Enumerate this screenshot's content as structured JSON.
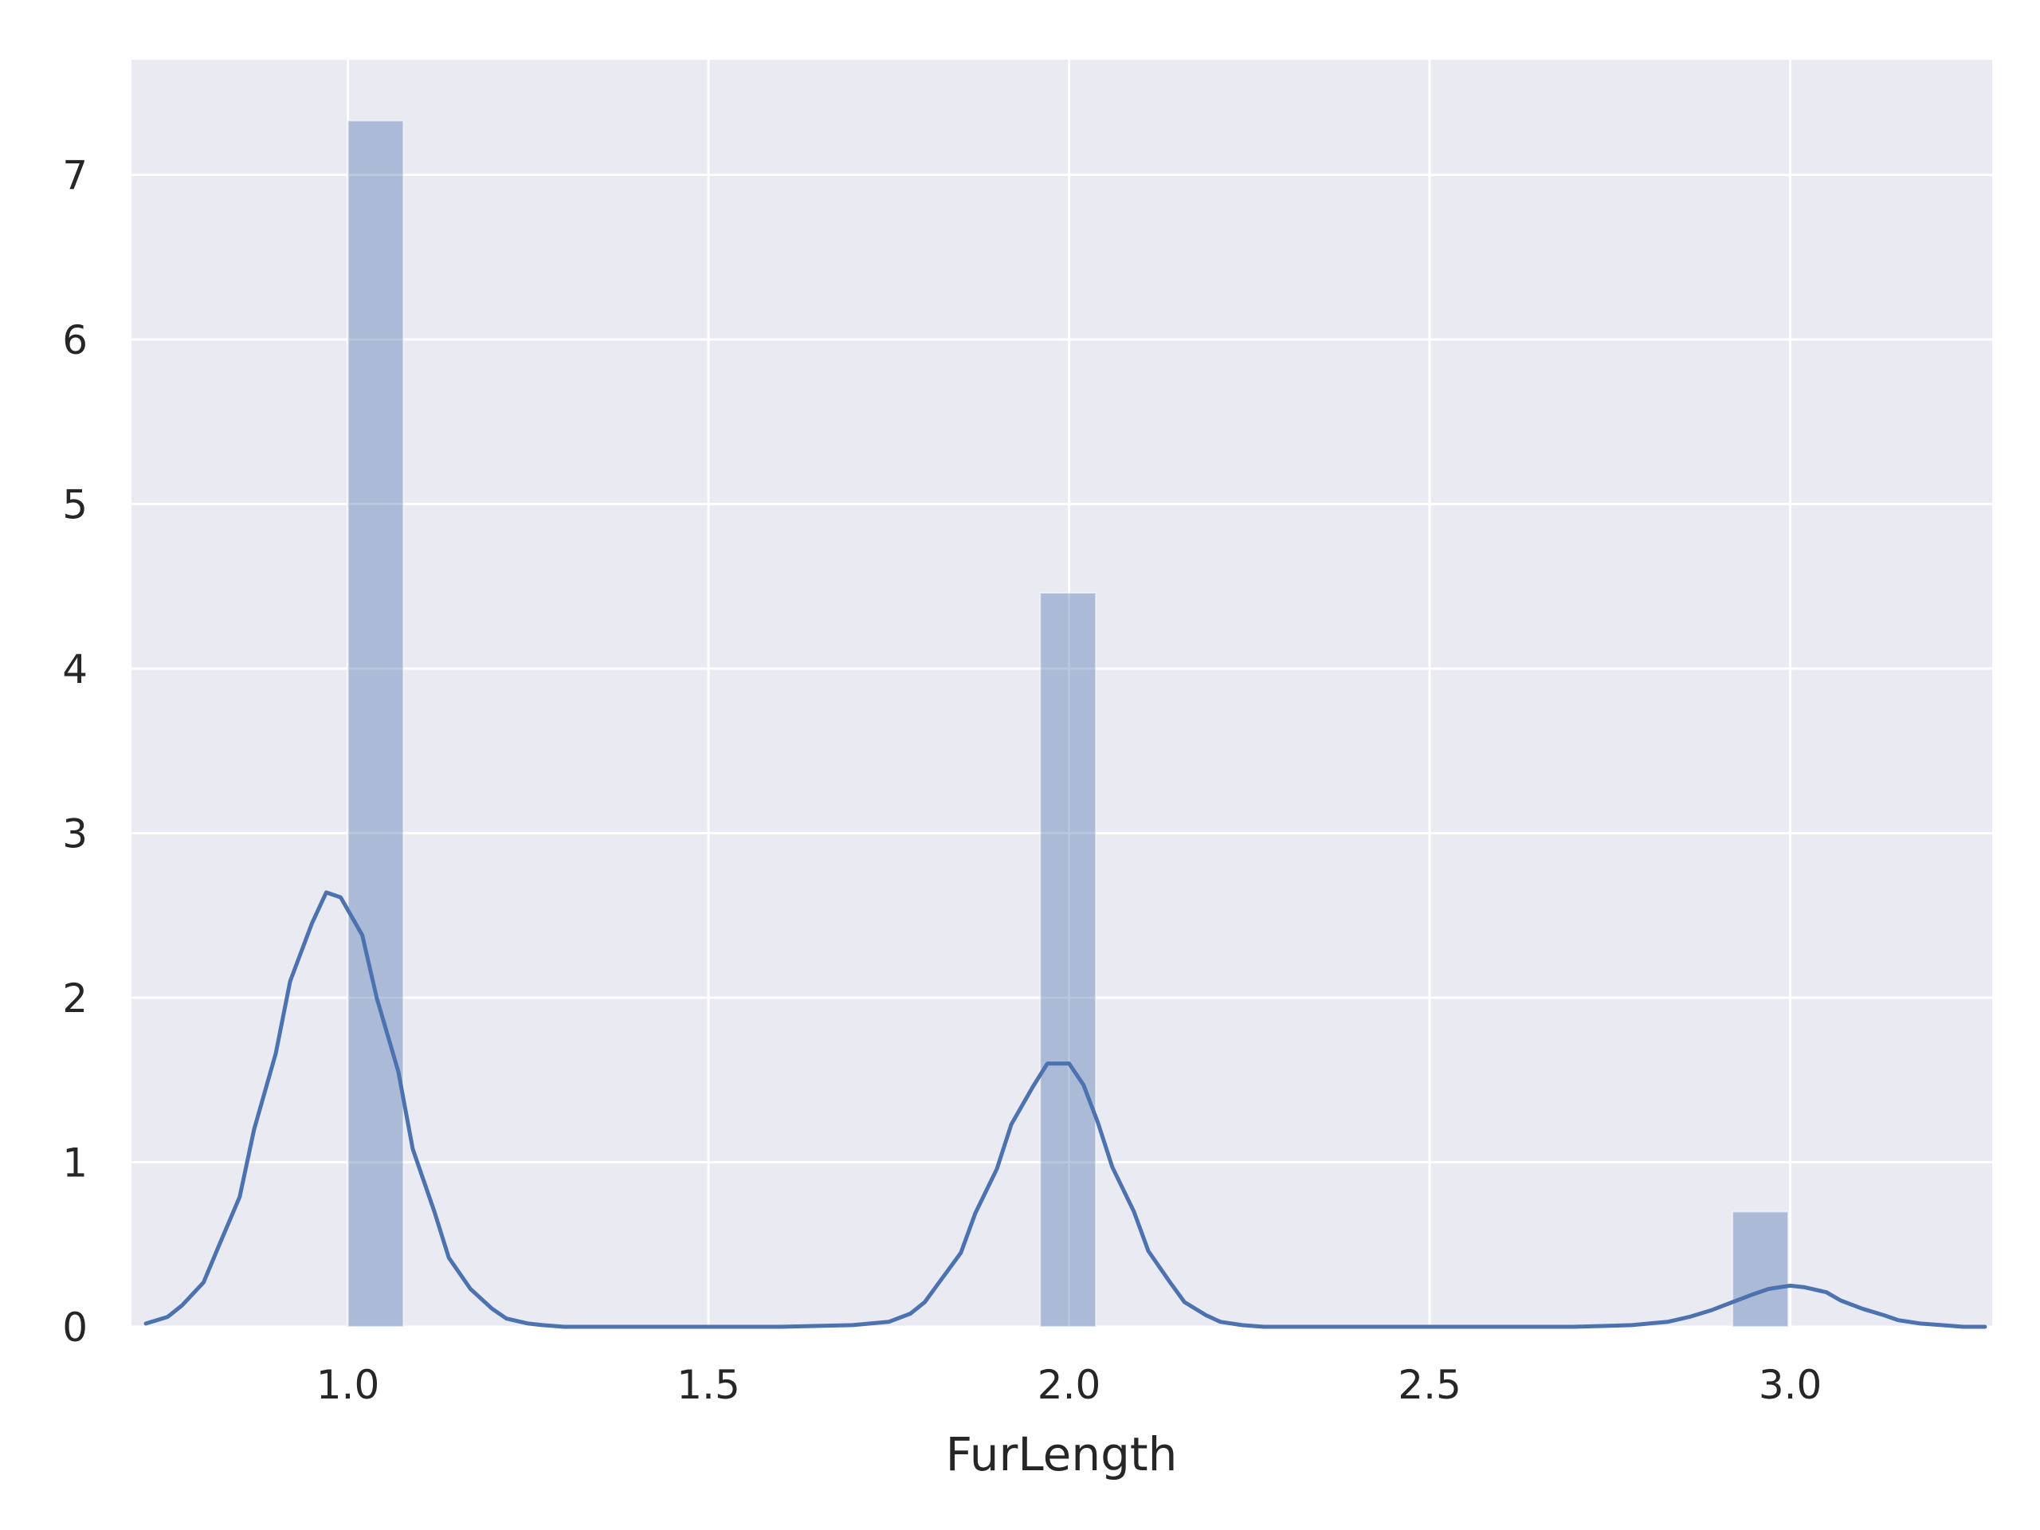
{
  "chart_data": {
    "type": "bar",
    "title": "",
    "xlabel": "FurLength",
    "ylabel": "",
    "xlim": [
      0.7,
      3.28
    ],
    "ylim": [
      0,
      7.7
    ],
    "grid": true,
    "colors": {
      "background": "#eaeaf2",
      "grid": "#ffffff",
      "bar_fill": "#4c72b0",
      "bar_opacity": 0.4,
      "kde_line": "#4c72b0",
      "text": "#262626"
    },
    "x_ticks": [
      {
        "value": 1.0,
        "label": "1.0"
      },
      {
        "value": 1.5,
        "label": "1.5"
      },
      {
        "value": 2.0,
        "label": "2.0"
      },
      {
        "value": 2.5,
        "label": "2.5"
      },
      {
        "value": 3.0,
        "label": "3.0"
      }
    ],
    "y_ticks": [
      {
        "value": 0,
        "label": "0"
      },
      {
        "value": 1,
        "label": "1"
      },
      {
        "value": 2,
        "label": "2"
      },
      {
        "value": 3,
        "label": "3"
      },
      {
        "value": 4,
        "label": "4"
      },
      {
        "value": 5,
        "label": "5"
      },
      {
        "value": 6,
        "label": "6"
      },
      {
        "value": 7,
        "label": "7"
      }
    ],
    "histogram": [
      {
        "x0": 1.0,
        "x1": 1.077,
        "density": 7.33
      },
      {
        "x0": 1.96,
        "x1": 2.037,
        "density": 4.46
      },
      {
        "x0": 2.92,
        "x1": 2.997,
        "density": 0.7
      }
    ],
    "series": [
      {
        "kind": "kde",
        "x": [
          0.72,
          0.75,
          0.77,
          0.8,
          0.82,
          0.85,
          0.87,
          0.9,
          0.92,
          0.95,
          0.97,
          0.99,
          1.02,
          1.04,
          1.07,
          1.09,
          1.12,
          1.14,
          1.17,
          1.2,
          1.22,
          1.25,
          1.27,
          1.3,
          1.35,
          1.4,
          1.5,
          1.6,
          1.7,
          1.75,
          1.78,
          1.8,
          1.82,
          1.85,
          1.87,
          1.9,
          1.92,
          1.95,
          1.97,
          2.0,
          2.02,
          2.04,
          2.06,
          2.09,
          2.11,
          2.14,
          2.16,
          2.19,
          2.21,
          2.24,
          2.27,
          2.3,
          2.4,
          2.5,
          2.6,
          2.7,
          2.78,
          2.83,
          2.86,
          2.89,
          2.92,
          2.95,
          2.97,
          3.0,
          3.02,
          3.05,
          3.07,
          3.1,
          3.13,
          3.15,
          3.18,
          3.21,
          3.24,
          3.27
        ],
        "y": [
          0.02,
          0.06,
          0.13,
          0.27,
          0.48,
          0.79,
          1.2,
          1.66,
          2.1,
          2.45,
          2.64,
          2.61,
          2.38,
          2.0,
          1.55,
          1.08,
          0.7,
          0.42,
          0.23,
          0.11,
          0.05,
          0.02,
          0.01,
          0.0,
          0.0,
          0.0,
          0.0,
          0.0,
          0.01,
          0.03,
          0.08,
          0.15,
          0.27,
          0.45,
          0.69,
          0.96,
          1.23,
          1.46,
          1.6,
          1.6,
          1.47,
          1.24,
          0.97,
          0.7,
          0.46,
          0.27,
          0.15,
          0.07,
          0.03,
          0.01,
          0.0,
          0.0,
          0.0,
          0.0,
          0.0,
          0.0,
          0.01,
          0.03,
          0.06,
          0.1,
          0.15,
          0.2,
          0.23,
          0.25,
          0.24,
          0.21,
          0.16,
          0.11,
          0.07,
          0.04,
          0.02,
          0.01,
          0.0,
          0.0
        ]
      }
    ]
  }
}
